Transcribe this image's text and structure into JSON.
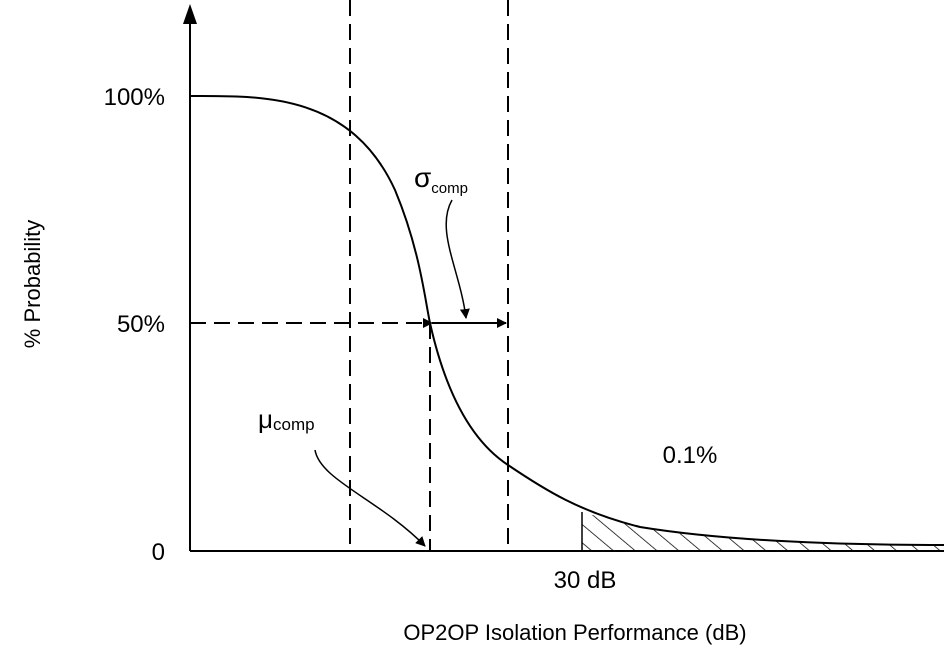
{
  "y_axis": {
    "label": "% Probability",
    "ticks": [
      "100%",
      "50%",
      "0"
    ]
  },
  "x_axis": {
    "label": "OP2OP Isolation Performance (dB)",
    "marker": "30 dB"
  },
  "annotations": {
    "sigma": {
      "symbol": "σ",
      "subscript": "comp"
    },
    "mu": {
      "symbol": "μ",
      "subscript": "comp"
    },
    "tail": "0.1%"
  }
}
